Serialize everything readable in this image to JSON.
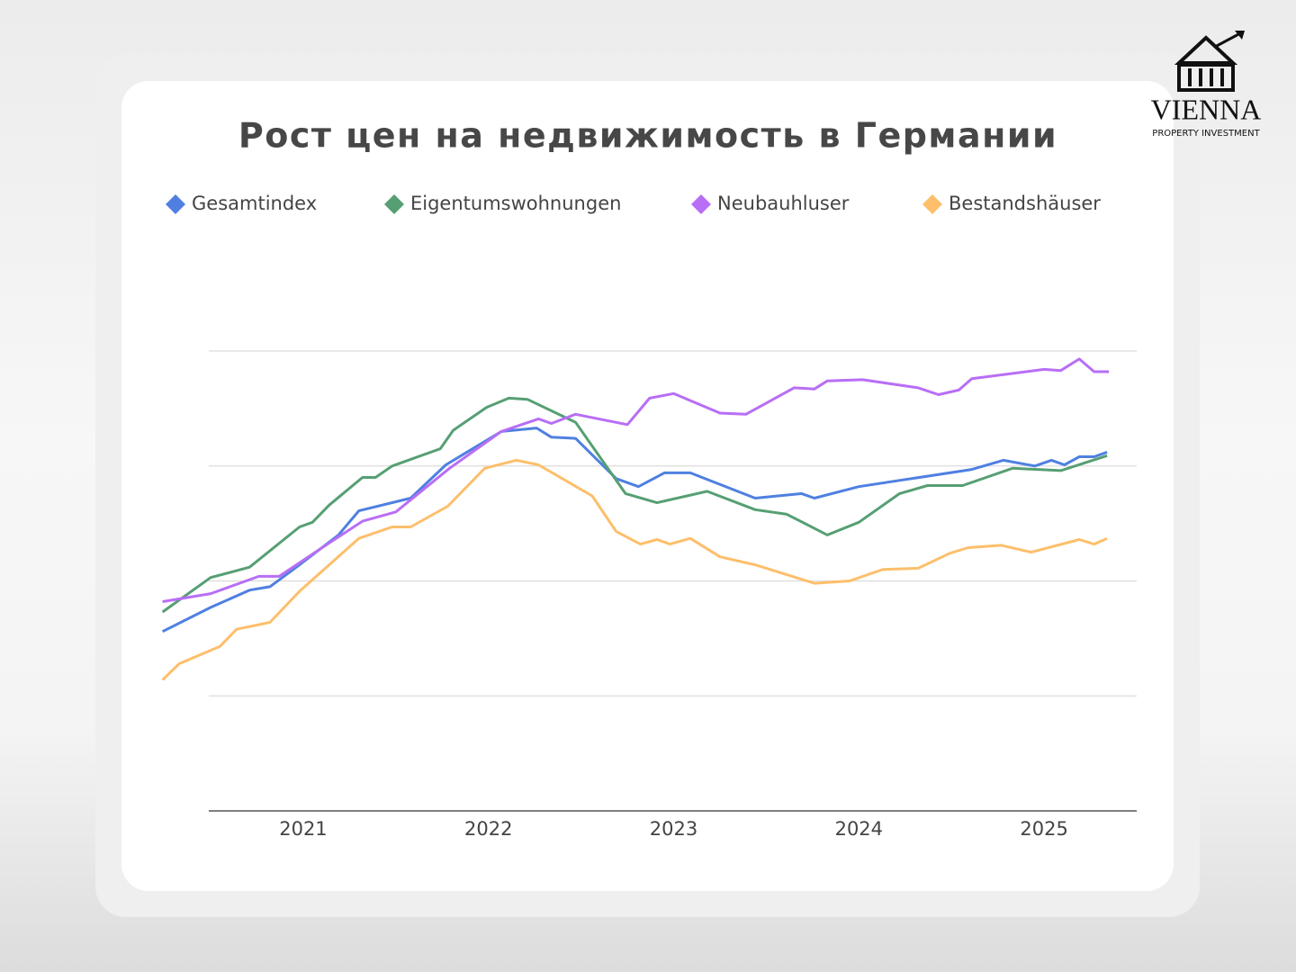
{
  "chart_data": {
    "type": "line",
    "title": "Рост цен на недвижимость в Германии",
    "xlim": [
      2020.49,
      2025.5
    ],
    "xticks": [
      2021,
      2022,
      2023,
      2024,
      2025
    ],
    "ylim": [
      0,
      4
    ],
    "ygrid": [
      0,
      1,
      2,
      3,
      4
    ],
    "series": [
      {
        "name": "Gesamtindex",
        "color": "#4f80e1",
        "x": [
          2020.24,
          2020.5,
          2020.71,
          2020.82,
          2020.98,
          2021.19,
          2021.3,
          2021.58,
          2021.77,
          2022.07,
          2022.26,
          2022.34,
          2022.47,
          2022.69,
          2022.81,
          2022.95,
          2023.09,
          2023.44,
          2023.69,
          2023.76,
          2024.0,
          2024.61,
          2024.78,
          2024.95,
          2025.04,
          2025.11,
          2025.19,
          2025.27,
          2025.34
        ],
        "values": [
          1.56,
          1.77,
          1.92,
          1.95,
          2.14,
          2.4,
          2.61,
          2.72,
          3.01,
          3.3,
          3.33,
          3.25,
          3.24,
          2.89,
          2.82,
          2.94,
          2.94,
          2.72,
          2.76,
          2.72,
          2.82,
          2.97,
          3.05,
          3.0,
          3.05,
          3.01,
          3.08,
          3.08,
          3.12
        ]
      },
      {
        "name": "Eigentumswohnungen",
        "color": "#569f73",
        "x": [
          2020.24,
          2020.5,
          2020.71,
          2020.98,
          2021.05,
          2021.14,
          2021.32,
          2021.39,
          2021.48,
          2021.74,
          2021.81,
          2021.99,
          2022.11,
          2022.21,
          2022.47,
          2022.74,
          2022.91,
          2023.18,
          2023.44,
          2023.61,
          2023.83,
          2024.0,
          2024.22,
          2024.37,
          2024.56,
          2024.83,
          2025.09,
          2025.34
        ],
        "values": [
          1.73,
          2.03,
          2.12,
          2.47,
          2.51,
          2.66,
          2.9,
          2.9,
          3.0,
          3.15,
          3.31,
          3.51,
          3.59,
          3.58,
          3.38,
          2.76,
          2.68,
          2.78,
          2.62,
          2.58,
          2.4,
          2.51,
          2.76,
          2.83,
          2.83,
          2.98,
          2.96,
          3.09
        ]
      },
      {
        "name": "Neubauhluser",
        "color": "#b86ef5",
        "x": [
          2020.24,
          2020.5,
          2020.76,
          2020.87,
          2021.14,
          2021.32,
          2021.5,
          2021.79,
          2022.07,
          2022.27,
          2022.34,
          2022.47,
          2022.75,
          2022.87,
          2023.0,
          2023.25,
          2023.39,
          2023.65,
          2023.76,
          2023.83,
          2024.02,
          2024.32,
          2024.43,
          2024.54,
          2024.61,
          2025.0,
          2025.09,
          2025.19,
          2025.27,
          2025.35
        ],
        "values": [
          1.82,
          1.89,
          2.04,
          2.04,
          2.33,
          2.52,
          2.6,
          2.98,
          3.3,
          3.41,
          3.37,
          3.45,
          3.36,
          3.59,
          3.63,
          3.46,
          3.45,
          3.68,
          3.67,
          3.74,
          3.75,
          3.68,
          3.62,
          3.66,
          3.76,
          3.84,
          3.83,
          3.93,
          3.82,
          3.82
        ]
      },
      {
        "name": "Bestandshäuser",
        "color": "#fdbf6b",
        "x": [
          2020.24,
          2020.33,
          2020.55,
          2020.64,
          2020.82,
          2020.98,
          2021.3,
          2021.48,
          2021.58,
          2021.78,
          2021.98,
          2022.15,
          2022.27,
          2022.56,
          2022.69,
          2022.82,
          2022.91,
          2022.98,
          2023.09,
          2023.25,
          2023.44,
          2023.76,
          2023.95,
          2024.13,
          2024.32,
          2024.49,
          2024.59,
          2024.77,
          2024.93,
          2025.19,
          2025.27,
          2025.34
        ],
        "values": [
          1.14,
          1.28,
          1.43,
          1.58,
          1.64,
          1.91,
          2.37,
          2.47,
          2.47,
          2.65,
          2.98,
          3.05,
          3.01,
          2.74,
          2.43,
          2.32,
          2.36,
          2.32,
          2.37,
          2.21,
          2.14,
          1.98,
          2.0,
          2.1,
          2.11,
          2.24,
          2.29,
          2.31,
          2.25,
          2.36,
          2.32,
          2.37
        ]
      }
    ]
  },
  "logo": {
    "name": "VIENNA",
    "tagline": "PROPERTY INVESTMENT"
  }
}
